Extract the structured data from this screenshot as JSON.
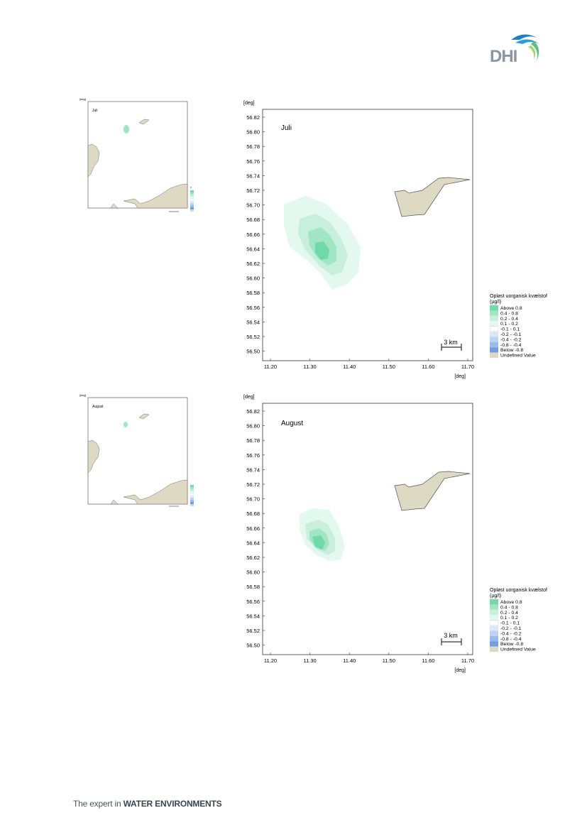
{
  "logo": {
    "text": "DHI",
    "colors": {
      "wave_blue": "#1a7fc4",
      "wave_green": "#5bc17f",
      "text_grey": "#8a96a3"
    }
  },
  "footer": {
    "prefix": "The expert in",
    "emphasis": "WATER ENVIRONMENTS"
  },
  "colors": {
    "land": "#ddd9c3",
    "plume_lightest": "#e3f8ee",
    "plume_light": "#c6f0dc",
    "plume_mid": "#a0e6c4",
    "plume_dark": "#6fd9a8",
    "frame": "#333333",
    "neg_blue_1": "#dbe8f8",
    "neg_blue_2": "#bcd3f2",
    "neg_blue_3": "#9bbce9",
    "neg_blue_4": "#6f9fde"
  },
  "axis": {
    "unit": "[deg]",
    "y_ticks": [
      "56.82",
      "56.80",
      "56.78",
      "56.76",
      "56.74",
      "56.72",
      "56.70",
      "56.68",
      "56.66",
      "56.64",
      "56.62",
      "56.60",
      "56.58",
      "56.56",
      "56.54",
      "56.52",
      "56.50"
    ],
    "x_ticks": [
      "11.20",
      "11.30",
      "11.40",
      "11.50",
      "11.60",
      "11.70"
    ]
  },
  "scale_bar": "3 km",
  "legend": {
    "title_line1": "Opløst uorganisk kvælstof",
    "title_line2": "(µg/l)",
    "items": [
      {
        "label": "Above  0.8",
        "color": "#6fd9a8"
      },
      {
        "label": "0.4 -  0.8",
        "color": "#a0e6c4"
      },
      {
        "label": "0.2 -  0.4",
        "color": "#c6f0dc"
      },
      {
        "label": "0.1 -  0.2",
        "color": "#e3f8ee"
      },
      {
        "label": "-0.1 -  0.1",
        "color": "#ffffff"
      },
      {
        "label": "-0.2 - -0.1",
        "color": "#dbe8f8"
      },
      {
        "label": "-0.4 - -0.2",
        "color": "#bcd3f2"
      },
      {
        "label": "-0.8 - -0.4",
        "color": "#9bbce9"
      },
      {
        "label": "Below -0.8",
        "color": "#6f9fde"
      },
      {
        "label": "Undefined Value",
        "color": "#ddd9c3"
      }
    ]
  },
  "maps": [
    {
      "title": "Juli"
    },
    {
      "title": "August"
    }
  ]
}
